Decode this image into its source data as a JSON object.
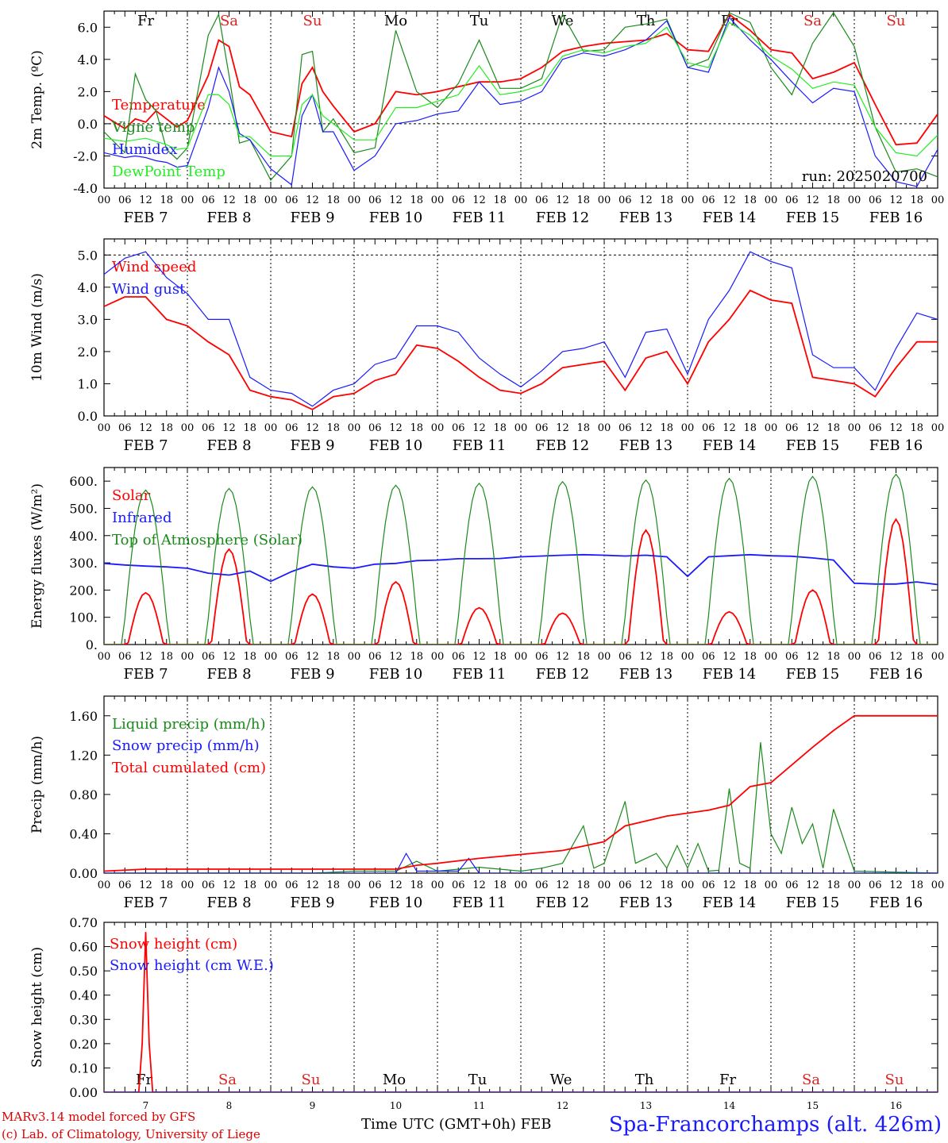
{
  "days": {
    "day_labels": [
      "Fr",
      "Sa",
      "Su",
      "Mo",
      "Tu",
      "We",
      "Th",
      "Fr",
      "Sa",
      "Su"
    ],
    "weekend_flags": [
      false,
      true,
      true,
      false,
      false,
      false,
      false,
      false,
      true,
      true
    ],
    "date_labels": [
      "FEB  7",
      "FEB  8",
      "FEB  9",
      "FEB 10",
      "FEB 11",
      "FEB 12",
      "FEB 13",
      "FEB 14",
      "FEB 15",
      "FEB 16"
    ],
    "hour_ticks": [
      "00",
      "06",
      "12",
      "18"
    ],
    "last_tick": "00",
    "day_numbers": [
      "7",
      "8",
      "9",
      "10",
      "11",
      "12",
      "13",
      "14",
      "15",
      "16"
    ]
  },
  "colors": {
    "red": "#ff0000",
    "darkgreen": "#1a8a1a",
    "blue": "#1a1aff",
    "lightgreen": "#22ee22",
    "weekend": "#dd2222",
    "weekday": "#000000"
  },
  "run_label": "run: 2025020700",
  "footer": {
    "model": "MARv3.14 model forced by GFS",
    "lab": "(c) Lab. of Climatology, University of Liege",
    "time_label": "Time UTC (GMT+0h) FEB",
    "station": "Spa-Francorchamps (alt. 426m)"
  },
  "chart_data": [
    {
      "type": "line",
      "ylabel": "2m Temp. (ºC)",
      "ylim": [
        -4,
        7
      ],
      "yticks": [
        "-4.0",
        "-2.0",
        "0.0",
        "2.0",
        "4.0",
        "6.0"
      ],
      "ytick_values": [
        -4,
        -2,
        0,
        2,
        4,
        6
      ],
      "ref_line": 0,
      "x_hours": [
        0,
        6,
        9,
        12,
        15,
        18,
        21,
        24,
        30,
        33,
        36,
        39,
        42,
        48,
        54,
        57,
        60,
        63,
        66,
        72,
        78,
        84,
        90,
        96,
        102,
        108,
        114,
        120,
        126,
        132,
        138,
        144,
        150,
        156,
        162,
        168,
        174,
        180,
        186,
        192,
        198,
        204,
        210,
        216,
        222,
        228,
        234,
        240
      ],
      "series": [
        {
          "name": "Temperature",
          "color": "red",
          "values": [
            0.5,
            -0.3,
            0.3,
            0.1,
            0.8,
            0.3,
            -0.2,
            0.2,
            3.0,
            5.2,
            4.8,
            2.3,
            1.8,
            -0.5,
            -0.8,
            2.5,
            3.5,
            2.0,
            1.1,
            -0.5,
            0.0,
            2.0,
            1.8,
            2.0,
            2.3,
            2.6,
            2.6,
            2.8,
            3.5,
            4.5,
            4.8,
            5.0,
            5.1,
            5.2,
            5.6,
            4.6,
            4.5,
            6.8,
            5.8,
            4.6,
            4.4,
            2.8,
            3.2,
            3.8,
            1.2,
            -1.3,
            -1.2,
            0.6
          ]
        },
        {
          "name": "Vigne temp",
          "color": "darkgreen",
          "values": [
            -0.5,
            -1.8,
            3.1,
            1.5,
            0.8,
            -1.6,
            -2.2,
            -1.5,
            5.5,
            6.8,
            3.0,
            -1.2,
            -1.0,
            -3.5,
            -2.0,
            4.3,
            4.5,
            -0.5,
            0.3,
            -1.8,
            -1.5,
            5.8,
            2.0,
            1.0,
            2.5,
            5.2,
            2.2,
            2.2,
            2.8,
            6.8,
            4.5,
            4.6,
            6.0,
            6.2,
            6.5,
            3.5,
            4.0,
            6.9,
            6.3,
            3.5,
            1.8,
            5.0,
            6.9,
            4.8,
            -0.2,
            -3.0,
            -2.8,
            -3.3
          ]
        },
        {
          "name": "Humidex",
          "color": "blue",
          "values": [
            -1.8,
            -2.1,
            -2.0,
            -2.1,
            -2.3,
            -2.4,
            -2.7,
            -2.6,
            1.0,
            3.5,
            2.0,
            -0.6,
            -1.0,
            -2.8,
            -3.8,
            0.5,
            1.8,
            -0.5,
            -0.5,
            -2.9,
            -2.0,
            0.0,
            0.2,
            0.6,
            0.8,
            2.6,
            1.2,
            1.4,
            2.0,
            4.0,
            4.4,
            4.2,
            4.6,
            5.2,
            6.4,
            3.5,
            3.2,
            6.6,
            5.2,
            4.0,
            2.6,
            1.3,
            2.2,
            2.0,
            -2.0,
            -3.6,
            -3.9,
            -1.6
          ]
        },
        {
          "name": "DewPoint Temp",
          "color": "lightgreen",
          "values": [
            -0.9,
            -1.1,
            -1.0,
            -0.9,
            -1.1,
            -1.3,
            -1.6,
            -1.5,
            1.8,
            1.8,
            1.2,
            -0.8,
            -0.8,
            -2.0,
            -2.0,
            1.2,
            1.8,
            0.5,
            0.0,
            -1.0,
            -1.0,
            1.0,
            1.0,
            1.4,
            1.8,
            3.6,
            1.8,
            2.0,
            2.4,
            4.2,
            4.6,
            4.4,
            4.8,
            5.0,
            6.0,
            3.8,
            3.5,
            6.3,
            5.5,
            4.2,
            3.4,
            2.2,
            2.6,
            2.4,
            -0.2,
            -1.8,
            -2.0,
            -0.7
          ]
        }
      ],
      "legend_placement": "top-left"
    },
    {
      "type": "line",
      "ylabel": "10m Wind (m/s)",
      "ylim": [
        0,
        5.5
      ],
      "yticks": [
        "0.0",
        "1.0",
        "2.0",
        "3.0",
        "4.0",
        "5.0"
      ],
      "ytick_values": [
        0,
        1,
        2,
        3,
        4,
        5
      ],
      "ref_line": 5,
      "x_hours": [
        0,
        6,
        12,
        18,
        24,
        30,
        36,
        42,
        48,
        54,
        60,
        66,
        72,
        78,
        84,
        90,
        96,
        102,
        108,
        114,
        120,
        126,
        132,
        138,
        144,
        150,
        156,
        162,
        168,
        174,
        180,
        186,
        192,
        198,
        204,
        210,
        216,
        222,
        228,
        234,
        240
      ],
      "series": [
        {
          "name": "Wind speed",
          "color": "red",
          "values": [
            3.4,
            3.7,
            3.7,
            3.0,
            2.8,
            2.3,
            1.9,
            0.8,
            0.6,
            0.5,
            0.2,
            0.6,
            0.7,
            1.1,
            1.3,
            2.2,
            2.1,
            1.7,
            1.2,
            0.8,
            0.7,
            1.0,
            1.5,
            1.6,
            1.7,
            0.8,
            1.8,
            2.0,
            1.0,
            2.3,
            3.0,
            3.9,
            3.6,
            3.5,
            1.2,
            1.1,
            1.0,
            0.6,
            1.5,
            2.3,
            2.3
          ]
        },
        {
          "name": "Wind gust",
          "color": "blue",
          "values": [
            4.4,
            4.9,
            5.1,
            4.3,
            3.8,
            3.0,
            3.0,
            1.2,
            0.8,
            0.7,
            0.3,
            0.8,
            1.0,
            1.6,
            1.8,
            2.8,
            2.8,
            2.6,
            1.8,
            1.3,
            0.9,
            1.4,
            2.0,
            2.1,
            2.3,
            1.2,
            2.6,
            2.7,
            1.3,
            3.0,
            3.9,
            5.1,
            4.8,
            4.6,
            1.9,
            1.5,
            1.5,
            0.8,
            2.1,
            3.2,
            3.0
          ]
        }
      ],
      "legend_placement": "top-left"
    },
    {
      "type": "line",
      "ylabel": "Energy fluxes (W/m²)",
      "ylim": [
        0,
        650
      ],
      "yticks": [
        "0.",
        "100.",
        "200.",
        "300.",
        "400.",
        "500.",
        "600."
      ],
      "ytick_values": [
        0,
        100,
        200,
        300,
        400,
        500,
        600
      ],
      "series": [
        {
          "name": "Solar",
          "color": "red",
          "daily_peaks": [
            190,
            350,
            185,
            230,
            135,
            115,
            420,
            120,
            200,
            460
          ]
        },
        {
          "name": "Infrared",
          "color": "blue",
          "x_hours": [
            0,
            6,
            12,
            18,
            24,
            30,
            36,
            42,
            48,
            54,
            60,
            66,
            72,
            78,
            84,
            90,
            96,
            102,
            108,
            114,
            120,
            126,
            132,
            138,
            144,
            150,
            156,
            162,
            168,
            174,
            180,
            186,
            192,
            198,
            204,
            210,
            216,
            222,
            228,
            234,
            240
          ],
          "values": [
            298,
            292,
            288,
            285,
            280,
            262,
            255,
            270,
            232,
            268,
            295,
            285,
            280,
            295,
            298,
            308,
            310,
            315,
            315,
            316,
            322,
            325,
            328,
            330,
            328,
            325,
            328,
            322,
            250,
            322,
            326,
            330,
            326,
            324,
            318,
            310,
            225,
            222,
            222,
            230,
            220
          ]
        },
        {
          "name": "Top of Atmosphere (Solar)",
          "color": "darkgreen",
          "daily_peaks": [
            567,
            573,
            579,
            585,
            592,
            598,
            604,
            610,
            617,
            625
          ]
        }
      ],
      "legend_placement": "top-left"
    },
    {
      "type": "line",
      "ylabel": "Precip (mm/h)",
      "ylim": [
        0,
        1.8
      ],
      "yticks": [
        "0.00",
        "0.40",
        "0.80",
        "1.20",
        "1.60"
      ],
      "ytick_values": [
        0,
        0.4,
        0.8,
        1.2,
        1.6
      ],
      "series": [
        {
          "name": "Liquid precip (mm/h)",
          "color": "darkgreen",
          "x_hours": [
            0,
            60,
            66,
            72,
            84,
            90,
            96,
            108,
            120,
            126,
            132,
            138,
            141,
            144,
            150,
            153,
            156,
            159,
            162,
            165,
            168,
            171,
            174,
            177,
            180,
            183,
            186,
            189,
            192,
            195,
            198,
            201,
            204,
            207,
            210,
            216,
            240
          ],
          "values": [
            0.0,
            0.0,
            0.01,
            0.02,
            0.02,
            0.12,
            0.02,
            0.06,
            0.02,
            0.05,
            0.1,
            0.48,
            0.05,
            0.1,
            0.73,
            0.1,
            0.15,
            0.2,
            0.05,
            0.28,
            0.05,
            0.3,
            0.02,
            0.03,
            0.86,
            0.1,
            0.05,
            1.33,
            0.4,
            0.2,
            0.67,
            0.3,
            0.5,
            0.05,
            0.65,
            0.02,
            0.0
          ]
        },
        {
          "name": "Snow precip (mm/h)",
          "color": "blue",
          "x_hours": [
            0,
            84,
            87,
            90,
            102,
            105,
            108,
            240
          ],
          "values": [
            0.0,
            0.0,
            0.2,
            0.02,
            0.02,
            0.15,
            0.0,
            0.0
          ]
        },
        {
          "name": "Total cumulated (cm)",
          "color": "red",
          "x_hours": [
            0,
            12,
            24,
            48,
            84,
            90,
            96,
            108,
            120,
            132,
            144,
            150,
            162,
            174,
            180,
            186,
            192,
            198,
            204,
            210,
            216,
            240
          ],
          "values": [
            0.02,
            0.04,
            0.04,
            0.04,
            0.04,
            0.08,
            0.1,
            0.15,
            0.19,
            0.23,
            0.32,
            0.48,
            0.58,
            0.64,
            0.69,
            0.88,
            0.92,
            1.1,
            1.28,
            1.45,
            1.6,
            1.6
          ]
        }
      ],
      "legend_placement": "top-left"
    },
    {
      "type": "line",
      "ylabel": "Snow height (cm)",
      "ylim": [
        0,
        0.7
      ],
      "yticks": [
        "0.00",
        "0.10",
        "0.20",
        "0.30",
        "0.40",
        "0.50",
        "0.60",
        "0.70"
      ],
      "ytick_values": [
        0,
        0.1,
        0.2,
        0.3,
        0.4,
        0.5,
        0.6,
        0.7
      ],
      "series": [
        {
          "name": "Snow height (cm)",
          "color": "red",
          "x_hours": [
            0,
            10,
            11,
            12,
            13,
            14,
            240
          ],
          "values": [
            0,
            0,
            0.2,
            0.66,
            0.2,
            0,
            0
          ]
        },
        {
          "name": "Snow height (cm W.E.)",
          "color": "blue",
          "x_hours": [
            0,
            240
          ],
          "values": [
            0,
            0
          ]
        }
      ],
      "legend_placement": "top-left"
    }
  ]
}
